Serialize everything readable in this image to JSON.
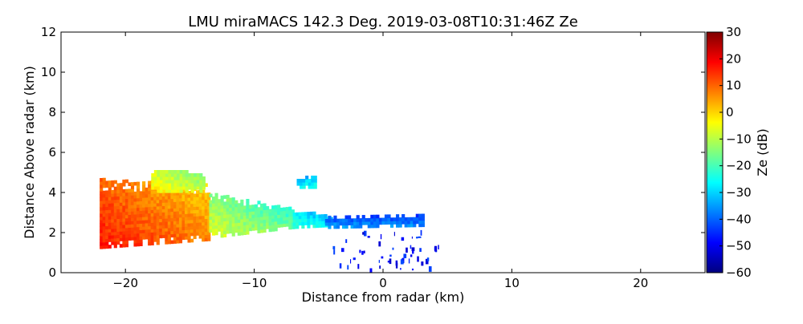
{
  "chart_data": {
    "type": "heatmap",
    "title": "LMU miraMACS 142.3 Deg. 2019-03-08T10:31:46Z  Ze",
    "xlabel": "Distance from radar (km)",
    "ylabel": "Distance Above radar  (km)",
    "xlim": [
      -25,
      25
    ],
    "ylim": [
      0,
      12
    ],
    "xticks": [
      -20,
      -10,
      0,
      10,
      20
    ],
    "xtick_labels": [
      "−20",
      "−10",
      "0",
      "10",
      "20"
    ],
    "yticks": [
      0,
      2,
      4,
      6,
      8,
      10,
      12
    ],
    "ytick_labels": [
      "0",
      "2",
      "4",
      "6",
      "8",
      "10",
      "12"
    ],
    "grid": false,
    "colorbar": {
      "label": "Ze (dB)",
      "range": [
        -60,
        30
      ],
      "colormap": "jet",
      "ticks": [
        30,
        20,
        10,
        0,
        -10,
        -20,
        -30,
        -40,
        -50,
        -60
      ],
      "tick_labels": [
        "30",
        "20",
        "10",
        "0",
        "−10",
        "−20",
        "−30",
        "−40",
        "−50",
        "−60"
      ]
    },
    "echo_regions": [
      {
        "x": [
          -22.0,
          -13.5
        ],
        "y_bottom": [
          1.2,
          1.6
        ],
        "y_top": [
          4.6,
          4.3
        ],
        "ze": [
          14,
          4
        ],
        "description": "main reflectivity core"
      },
      {
        "x": [
          -18.0,
          -14.0
        ],
        "y_bottom": [
          4.0,
          4.0
        ],
        "y_top": [
          5.1,
          4.9
        ],
        "ze": [
          -5,
          -12
        ]
      },
      {
        "x": [
          -13.5,
          -7.0
        ],
        "y_bottom": [
          1.7,
          2.2
        ],
        "y_top": [
          3.9,
          3.1
        ],
        "ze": [
          -10,
          -20
        ]
      },
      {
        "x": [
          -7.0,
          -4.0
        ],
        "y_bottom": [
          2.2,
          2.3
        ],
        "y_top": [
          3.0,
          2.8
        ],
        "ze": [
          -25,
          -30
        ]
      },
      {
        "x": [
          -4.5,
          3.0
        ],
        "y_bottom": [
          2.2,
          2.3
        ],
        "y_top": [
          2.7,
          2.8
        ],
        "ze": [
          -38,
          -40
        ]
      },
      {
        "x": [
          -6.7,
          -5.3
        ],
        "y_bottom": [
          4.2,
          4.2
        ],
        "y_top": [
          4.6,
          4.8
        ],
        "ze": [
          -28,
          -28
        ]
      }
    ]
  }
}
